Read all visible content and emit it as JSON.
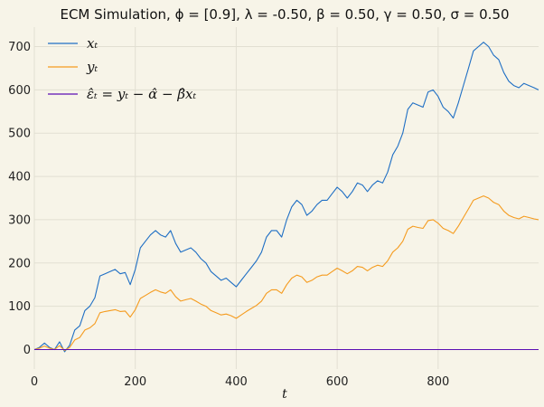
{
  "chart_data": {
    "type": "line",
    "title": "ECM Simulation, ϕ = [0.9], λ = -0.50, β = 0.50, γ = 0.50, σ = 0.50",
    "xlabel": "t",
    "ylabel": "",
    "xlim": [
      0,
      999
    ],
    "ylim": [
      -45,
      745
    ],
    "x_ticks": [
      0,
      200,
      400,
      600,
      800
    ],
    "y_ticks": [
      0,
      100,
      200,
      300,
      400,
      500,
      600,
      700
    ],
    "grid": true,
    "legend_position": "top-left",
    "series": [
      {
        "name": "x_t",
        "legend_label": "xₜ",
        "color": "#1f6fc4",
        "x": [
          0,
          10,
          20,
          30,
          40,
          50,
          60,
          70,
          80,
          90,
          100,
          110,
          120,
          130,
          140,
          150,
          160,
          170,
          180,
          190,
          200,
          210,
          220,
          230,
          240,
          250,
          260,
          270,
          280,
          290,
          300,
          310,
          320,
          330,
          340,
          350,
          360,
          370,
          380,
          390,
          400,
          410,
          420,
          430,
          440,
          450,
          460,
          470,
          480,
          490,
          500,
          510,
          520,
          530,
          540,
          550,
          560,
          570,
          580,
          590,
          600,
          610,
          620,
          630,
          640,
          650,
          660,
          670,
          680,
          690,
          700,
          710,
          720,
          730,
          740,
          750,
          760,
          770,
          780,
          790,
          800,
          810,
          820,
          830,
          840,
          850,
          860,
          870,
          880,
          890,
          900,
          910,
          920,
          930,
          940,
          950,
          960,
          970,
          980,
          990,
          999
        ],
        "values": [
          0,
          5,
          15,
          5,
          0,
          18,
          -5,
          10,
          45,
          55,
          90,
          100,
          120,
          170,
          175,
          180,
          185,
          175,
          178,
          150,
          185,
          235,
          250,
          265,
          275,
          265,
          260,
          275,
          245,
          225,
          230,
          235,
          225,
          210,
          200,
          180,
          170,
          160,
          165,
          155,
          145,
          160,
          175,
          190,
          205,
          225,
          260,
          275,
          275,
          260,
          300,
          330,
          345,
          335,
          310,
          320,
          335,
          345,
          345,
          360,
          375,
          365,
          350,
          365,
          385,
          380,
          365,
          380,
          390,
          385,
          410,
          450,
          470,
          500,
          555,
          570,
          565,
          560,
          595,
          600,
          585,
          560,
          550,
          535,
          570,
          610,
          650,
          690,
          700,
          710,
          700,
          680,
          670,
          640,
          620,
          610,
          605,
          615,
          610,
          605,
          600
        ]
      },
      {
        "name": "y_t",
        "legend_label": "yₜ",
        "color": "#f59b1e",
        "x": [
          0,
          10,
          20,
          30,
          40,
          50,
          60,
          70,
          80,
          90,
          100,
          110,
          120,
          130,
          140,
          150,
          160,
          170,
          180,
          190,
          200,
          210,
          220,
          230,
          240,
          250,
          260,
          270,
          280,
          290,
          300,
          310,
          320,
          330,
          340,
          350,
          360,
          370,
          380,
          390,
          400,
          410,
          420,
          430,
          440,
          450,
          460,
          470,
          480,
          490,
          500,
          510,
          520,
          530,
          540,
          550,
          560,
          570,
          580,
          590,
          600,
          610,
          620,
          630,
          640,
          650,
          660,
          670,
          680,
          690,
          700,
          710,
          720,
          730,
          740,
          750,
          760,
          770,
          780,
          790,
          800,
          810,
          820,
          830,
          840,
          850,
          860,
          870,
          880,
          890,
          900,
          910,
          920,
          930,
          940,
          950,
          960,
          970,
          980,
          990,
          999
        ],
        "values": [
          0,
          3,
          8,
          3,
          0,
          9,
          -2,
          5,
          22,
          28,
          45,
          50,
          60,
          85,
          88,
          90,
          92,
          88,
          89,
          75,
          92,
          118,
          125,
          132,
          138,
          133,
          130,
          138,
          122,
          112,
          115,
          118,
          112,
          105,
          100,
          90,
          85,
          80,
          82,
          78,
          72,
          80,
          88,
          95,
          102,
          112,
          130,
          138,
          138,
          130,
          150,
          165,
          172,
          168,
          155,
          160,
          168,
          172,
          172,
          180,
          188,
          182,
          175,
          182,
          192,
          190,
          182,
          190,
          195,
          192,
          205,
          225,
          235,
          250,
          278,
          285,
          282,
          280,
          298,
          300,
          292,
          280,
          275,
          268,
          285,
          305,
          325,
          345,
          350,
          355,
          350,
          340,
          335,
          320,
          310,
          305,
          302,
          308,
          305,
          302,
          300
        ]
      },
      {
        "name": "epsilon_t",
        "legend_label": "ε̂ₜ = yₜ − α̂ − β̂xₜ",
        "color": "#5b0fb3",
        "x": [
          0,
          50,
          100,
          150,
          200,
          250,
          300,
          350,
          400,
          450,
          500,
          550,
          600,
          650,
          700,
          750,
          800,
          850,
          900,
          950,
          999
        ],
        "values": [
          0,
          0,
          0,
          0,
          0,
          0,
          0,
          0,
          0,
          0,
          0,
          0,
          0,
          0,
          0,
          0,
          0,
          0,
          0,
          0,
          0
        ]
      }
    ]
  }
}
